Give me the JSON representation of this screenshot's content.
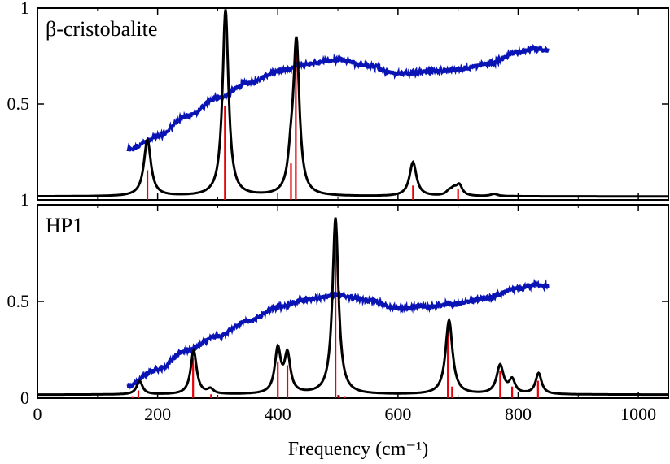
{
  "chart_data": [
    {
      "type": "line",
      "title": "β-cristobalite",
      "xlim": [
        0,
        1050
      ],
      "ylim": [
        0,
        1
      ],
      "xticks": [
        0,
        200,
        400,
        600,
        800,
        1000
      ],
      "yticks": [
        {
          "v": 0,
          "label": "1"
        },
        {
          "v": 0.5,
          "label": "0.5"
        },
        {
          "v": 1,
          "label": "1"
        }
      ],
      "colors": {
        "computed": "#000000",
        "sticks": "#e8000b",
        "experiment": "#0a14b4"
      },
      "peaks": [
        {
          "x": 183,
          "a": 0.3,
          "w": 7
        },
        {
          "x": 313,
          "a": 0.99,
          "w": 6
        },
        {
          "x": 422,
          "a": 0.15,
          "w": 6
        },
        {
          "x": 431,
          "a": 0.8,
          "w": 6
        },
        {
          "x": 625,
          "a": 0.18,
          "w": 7
        },
        {
          "x": 685,
          "a": 0.02,
          "w": 6
        },
        {
          "x": 693,
          "a": 0.03,
          "w": 6
        },
        {
          "x": 702,
          "a": 0.055,
          "w": 6
        },
        {
          "x": 760,
          "a": 0.012,
          "w": 7
        }
      ],
      "sticks": [
        {
          "x": 183,
          "y": 0.155
        },
        {
          "x": 312,
          "y": 0.49
        },
        {
          "x": 422,
          "y": 0.19
        },
        {
          "x": 430,
          "y": 0.77
        },
        {
          "x": 625,
          "y": 0.075
        },
        {
          "x": 700,
          "y": 0.055
        }
      ],
      "experiment": [
        {
          "x": 150,
          "y": 0.26
        },
        {
          "x": 200,
          "y": 0.33
        },
        {
          "x": 250,
          "y": 0.44
        },
        {
          "x": 300,
          "y": 0.53
        },
        {
          "x": 350,
          "y": 0.61
        },
        {
          "x": 400,
          "y": 0.67
        },
        {
          "x": 450,
          "y": 0.71
        },
        {
          "x": 500,
          "y": 0.73
        },
        {
          "x": 550,
          "y": 0.7
        },
        {
          "x": 600,
          "y": 0.66
        },
        {
          "x": 650,
          "y": 0.67
        },
        {
          "x": 700,
          "y": 0.68
        },
        {
          "x": 750,
          "y": 0.71
        },
        {
          "x": 800,
          "y": 0.77
        },
        {
          "x": 830,
          "y": 0.79
        },
        {
          "x": 850,
          "y": 0.78
        }
      ]
    },
    {
      "type": "line",
      "title": "HP1",
      "xlim": [
        0,
        1050
      ],
      "ylim": [
        0,
        1
      ],
      "xticks": [
        0,
        200,
        400,
        600,
        800,
        1000
      ],
      "xticklabels": [
        "0",
        "200",
        "400",
        "600",
        "800",
        "1000"
      ],
      "yticks": [
        {
          "v": 0,
          "label": "0"
        },
        {
          "v": 0.5,
          "label": "0.5"
        }
      ],
      "xlabel": "Frequency (cm⁻¹)",
      "colors": {
        "computed": "#000000",
        "sticks": "#e8000b",
        "experiment": "#0a14b4"
      },
      "peaks": [
        {
          "x": 170,
          "a": 0.07,
          "w": 6
        },
        {
          "x": 260,
          "a": 0.23,
          "w": 6
        },
        {
          "x": 288,
          "a": 0.025,
          "w": 6
        },
        {
          "x": 400,
          "a": 0.23,
          "w": 6
        },
        {
          "x": 416,
          "a": 0.2,
          "w": 6
        },
        {
          "x": 496,
          "a": 0.93,
          "w": 6
        },
        {
          "x": 685,
          "a": 0.39,
          "w": 7
        },
        {
          "x": 770,
          "a": 0.15,
          "w": 7
        },
        {
          "x": 790,
          "a": 0.07,
          "w": 6
        },
        {
          "x": 834,
          "a": 0.11,
          "w": 6
        }
      ],
      "sticks": [
        {
          "x": 158,
          "y": 0.01
        },
        {
          "x": 168,
          "y": 0.04
        },
        {
          "x": 259,
          "y": 0.21
        },
        {
          "x": 289,
          "y": 0.02
        },
        {
          "x": 300,
          "y": 0.01
        },
        {
          "x": 400,
          "y": 0.19
        },
        {
          "x": 416,
          "y": 0.17
        },
        {
          "x": 496,
          "y": 0.91
        },
        {
          "x": 502,
          "y": 0.015
        },
        {
          "x": 512,
          "y": 0.01
        },
        {
          "x": 683,
          "y": 0.36
        },
        {
          "x": 690,
          "y": 0.06
        },
        {
          "x": 770,
          "y": 0.14
        },
        {
          "x": 790,
          "y": 0.06
        },
        {
          "x": 833,
          "y": 0.09
        }
      ],
      "experiment": [
        {
          "x": 150,
          "y": 0.065
        },
        {
          "x": 200,
          "y": 0.15
        },
        {
          "x": 250,
          "y": 0.25
        },
        {
          "x": 300,
          "y": 0.32
        },
        {
          "x": 350,
          "y": 0.4
        },
        {
          "x": 400,
          "y": 0.47
        },
        {
          "x": 450,
          "y": 0.51
        },
        {
          "x": 500,
          "y": 0.535
        },
        {
          "x": 550,
          "y": 0.505
        },
        {
          "x": 600,
          "y": 0.465
        },
        {
          "x": 650,
          "y": 0.475
        },
        {
          "x": 700,
          "y": 0.49
        },
        {
          "x": 750,
          "y": 0.52
        },
        {
          "x": 800,
          "y": 0.57
        },
        {
          "x": 830,
          "y": 0.585
        },
        {
          "x": 850,
          "y": 0.58
        }
      ]
    }
  ]
}
